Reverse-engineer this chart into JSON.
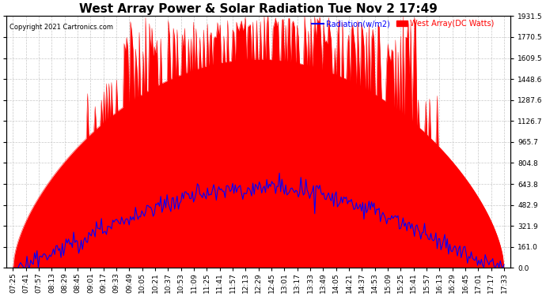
{
  "title": "West Array Power & Solar Radiation Tue Nov 2 17:49",
  "copyright": "Copyright 2021 Cartronics.com",
  "legend_radiation": "Radiation(w/m2)",
  "legend_west": "West Array(DC Watts)",
  "ymax": 1931.5,
  "yticks": [
    0.0,
    161.0,
    321.9,
    482.9,
    643.8,
    804.8,
    965.7,
    1126.7,
    1287.6,
    1448.6,
    1609.5,
    1770.5,
    1931.5
  ],
  "xtick_labels": [
    "07:25",
    "07:41",
    "07:57",
    "08:13",
    "08:29",
    "08:45",
    "09:01",
    "09:17",
    "09:33",
    "09:49",
    "10:05",
    "10:21",
    "10:37",
    "10:53",
    "11:09",
    "11:25",
    "11:41",
    "11:57",
    "12:13",
    "12:29",
    "12:45",
    "13:01",
    "13:17",
    "13:33",
    "13:49",
    "14:05",
    "14:21",
    "14:37",
    "14:53",
    "15:09",
    "15:25",
    "15:41",
    "15:57",
    "16:13",
    "16:29",
    "16:45",
    "17:01",
    "17:17",
    "17:33"
  ],
  "n_xticks": 39,
  "background_color": "#ffffff",
  "grid_color": "#c8c8c8",
  "bar_color": "#ff0000",
  "line_color": "#0000ff",
  "title_fontsize": 11,
  "tick_fontsize": 6.5,
  "copyright_fontsize": 6
}
